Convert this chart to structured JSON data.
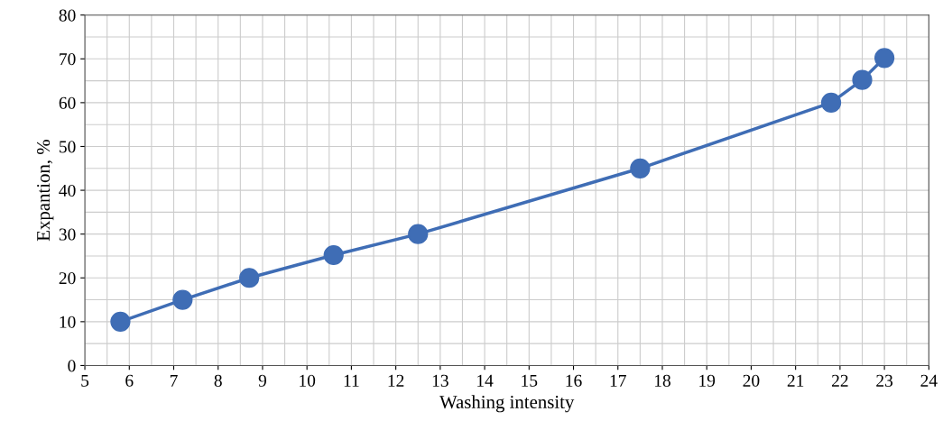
{
  "chart_data": {
    "type": "line",
    "xlabel": "Washing intensity",
    "ylabel": "Expantion, %",
    "x": [
      5.8,
      7.2,
      8.7,
      10.6,
      12.5,
      17.5,
      21.8,
      22.5,
      23.0
    ],
    "series": [
      {
        "color": "#3f6db5",
        "values": [
          10,
          15,
          20,
          25.2,
          30,
          45,
          60,
          65.2,
          70.2
        ]
      }
    ],
    "xlim": [
      5,
      24
    ],
    "xticks": [
      5,
      6,
      7,
      8,
      9,
      10,
      11,
      12,
      13,
      14,
      15,
      16,
      17,
      18,
      19,
      20,
      21,
      22,
      23,
      24
    ],
    "ylim": [
      0,
      80
    ],
    "yticks": [
      0,
      10,
      20,
      30,
      40,
      50,
      60,
      70,
      80
    ],
    "grid": true,
    "marker": "circle",
    "line_style": "solid"
  }
}
